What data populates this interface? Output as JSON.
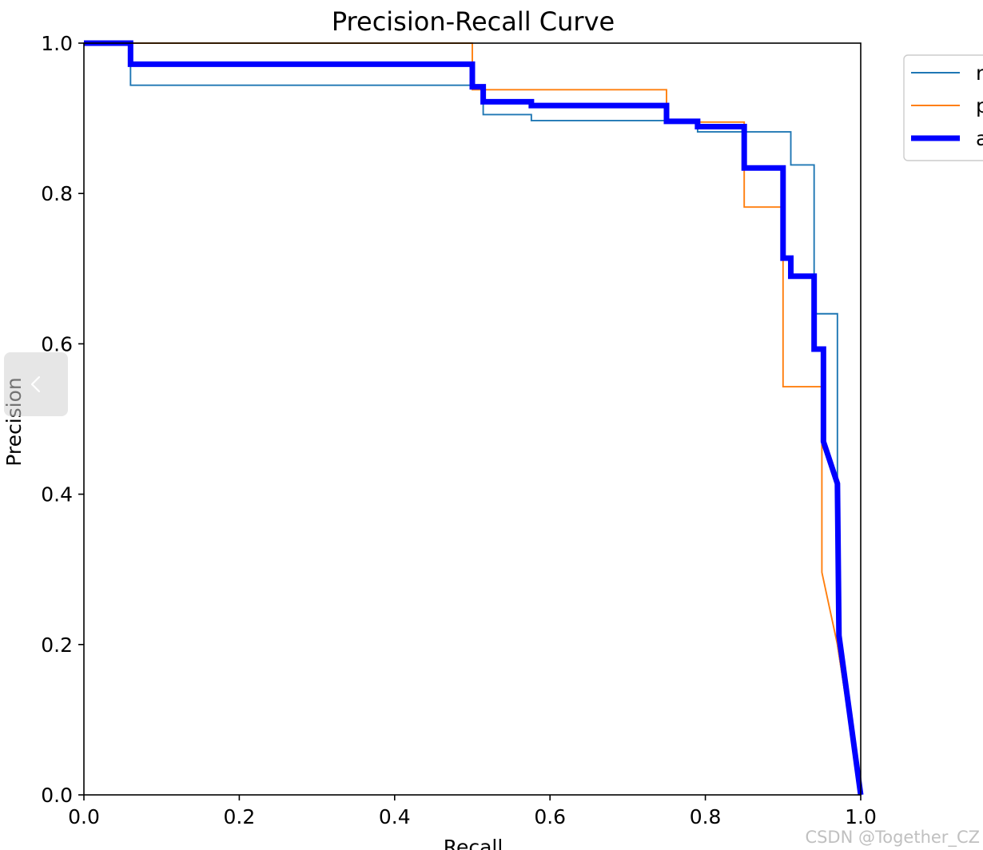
{
  "chart_data": {
    "type": "line",
    "title": "Precision-Recall Curve",
    "xlabel": "Recall",
    "ylabel": "Precision",
    "xlim": [
      0,
      1
    ],
    "ylim": [
      0,
      1
    ],
    "xticks": [
      "0.0",
      "0.2",
      "0.4",
      "0.6",
      "0.8",
      "1.0"
    ],
    "yticks": [
      "0.0",
      "0.2",
      "0.4",
      "0.6",
      "0.8",
      "1.0"
    ],
    "grid": false,
    "legend_position": "upper right outside plot, partially cropped",
    "series": [
      {
        "name": "n",
        "color": "#1f77b4",
        "weight": "thin",
        "points": [
          [
            0,
            1.0
          ],
          [
            0.06,
            1.0
          ],
          [
            0.06,
            0.944
          ],
          [
            0.5,
            0.944
          ],
          [
            0.5,
            0.944
          ],
          [
            0.514,
            0.944
          ],
          [
            0.514,
            0.905
          ],
          [
            0.576,
            0.905
          ],
          [
            0.576,
            0.897
          ],
          [
            0.79,
            0.897
          ],
          [
            0.79,
            0.882
          ],
          [
            0.91,
            0.882
          ],
          [
            0.91,
            0.838
          ],
          [
            0.94,
            0.838
          ],
          [
            0.94,
            0.64
          ],
          [
            0.97,
            0.64
          ],
          [
            0.97,
            0.2
          ],
          [
            1.0,
            0.0
          ]
        ]
      },
      {
        "name": "p",
        "color": "#ff7f0e",
        "weight": "thin",
        "points": [
          [
            0,
            1.0
          ],
          [
            0.5,
            1.0
          ],
          [
            0.5,
            0.938
          ],
          [
            0.75,
            0.938
          ],
          [
            0.75,
            0.895
          ],
          [
            0.85,
            0.895
          ],
          [
            0.85,
            0.782
          ],
          [
            0.9,
            0.782
          ],
          [
            0.9,
            0.543
          ],
          [
            0.95,
            0.543
          ],
          [
            0.95,
            0.296
          ],
          [
            0.97,
            0.2
          ],
          [
            1.0,
            0.0
          ]
        ]
      },
      {
        "name": "a",
        "color": "#0000ff",
        "weight": "thick",
        "points": [
          [
            0,
            1.0
          ],
          [
            0.06,
            1.0
          ],
          [
            0.06,
            0.972
          ],
          [
            0.5,
            0.972
          ],
          [
            0.5,
            0.942
          ],
          [
            0.514,
            0.942
          ],
          [
            0.514,
            0.922
          ],
          [
            0.576,
            0.922
          ],
          [
            0.576,
            0.917
          ],
          [
            0.75,
            0.917
          ],
          [
            0.75,
            0.896
          ],
          [
            0.79,
            0.896
          ],
          [
            0.79,
            0.889
          ],
          [
            0.85,
            0.889
          ],
          [
            0.85,
            0.834
          ],
          [
            0.9,
            0.834
          ],
          [
            0.9,
            0.714
          ],
          [
            0.91,
            0.714
          ],
          [
            0.91,
            0.69
          ],
          [
            0.94,
            0.69
          ],
          [
            0.94,
            0.593
          ],
          [
            0.952,
            0.593
          ],
          [
            0.952,
            0.47
          ],
          [
            0.97,
            0.414
          ],
          [
            0.972,
            0.212
          ],
          [
            1.0,
            0.0
          ]
        ]
      }
    ]
  },
  "nav": {
    "prev_icon": "chevron-left-icon"
  },
  "watermark": "CSDN @Together_CZ"
}
